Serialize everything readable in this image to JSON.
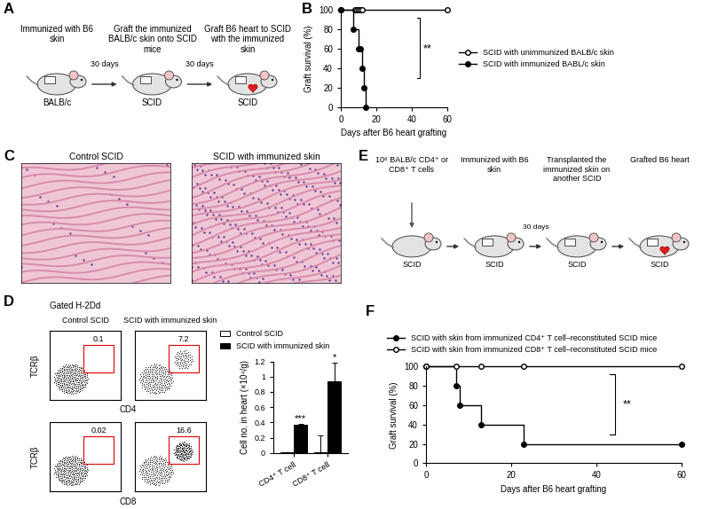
{
  "diagrams": [
    {
      "panel": "A",
      "steps": [
        {
          "mouse": "BALB/c",
          "text": "Immunized with B6 skin"
        },
        {
          "mouse": "SCID",
          "text": "Graft the immunized BALB/c skin onto SCID mice"
        },
        {
          "mouse": "SCID",
          "text": "Graft B6 heart to SCID with the immunized skin"
        }
      ],
      "arrows": [
        "30 days",
        "30 days"
      ]
    },
    {
      "panel": "E",
      "steps": [
        {
          "mouse": "SCID",
          "text": "10⁶ BALB/c CD4⁺ or CD8⁺ T cells"
        },
        {
          "mouse": "SCID",
          "text": "Immunized with B6 skin"
        },
        {
          "mouse": "SCID",
          "text": "Transplanted the immunized skin on another SCID"
        },
        {
          "mouse": "SCID",
          "text": "Grafted B6 heart"
        }
      ],
      "arrows": [
        null,
        "30 days",
        null
      ]
    }
  ],
  "images": {
    "panel": "C",
    "titles": [
      "Control SCID",
      "SCID with immunized skin"
    ]
  },
  "flow_plots": {
    "panel": "D",
    "title": "Gated H-2Dd",
    "columns": [
      "Control SCID",
      "SCID with immunized skin"
    ],
    "y_label": "TCRβ",
    "rows": [
      {
        "x_label": "CD4",
        "percents": [
          0.1,
          7.2
        ]
      },
      {
        "x_label": "CD8",
        "percents": [
          0.02,
          16.6
        ]
      }
    ]
  },
  "chart_data": [
    {
      "panel": "B",
      "type": "line",
      "line_style": "steps",
      "x_label": "Days after B6 heart grafting",
      "y_label": "Graft survival (%)",
      "xlim": [
        0,
        60
      ],
      "xticks": [
        0,
        20,
        40,
        60
      ],
      "ylim": [
        0,
        100
      ],
      "yticks": [
        0,
        20,
        40,
        60,
        80,
        100
      ],
      "legend": "center left",
      "series": [
        {
          "name": "SCID with unimmunized BALB/c skin",
          "color": "#000000",
          "marker": "open_circle",
          "x": [
            0,
            8,
            9,
            10,
            11,
            12,
            60
          ],
          "values": [
            100,
            100,
            100,
            100,
            100,
            100,
            100
          ]
        },
        {
          "name": "SCID with immunized BABL/c skin",
          "color": "#000000",
          "marker": "filled_circle",
          "x": [
            0,
            7,
            10,
            11,
            12,
            13,
            14
          ],
          "values": [
            100,
            80,
            60,
            60,
            40,
            20,
            0
          ]
        }
      ],
      "annotations": [
        "**"
      ]
    },
    {
      "panel": "D",
      "type": "bar",
      "y_label": "Cell no. in heart (×10⁴/g)",
      "categories": [
        "CD4⁺ T cell",
        "CD8⁺ T cell"
      ],
      "ylim": [
        0,
        1.2
      ],
      "yticks": [
        0,
        0.2,
        0.4,
        0.6,
        0.8,
        1,
        1.2
      ],
      "legend": "lower left",
      "series": [
        {
          "name": "Control SCID",
          "color": "#ffffff",
          "values": [
            0.01,
            0.01
          ],
          "errors": [
            0.005,
            0.22
          ]
        },
        {
          "name": "SCID with immunized skin",
          "color": "#000000",
          "values": [
            0.37,
            0.94
          ],
          "errors": [
            0.01,
            0.24
          ]
        }
      ],
      "annotations": [
        "***",
        "*"
      ]
    },
    {
      "panel": "F",
      "type": "line",
      "line_style": "steps",
      "x_label": "Days after B6 heart grafting",
      "y_label": "Graft survival (%)",
      "xlim": [
        0,
        60
      ],
      "xticks": [
        0,
        20,
        40,
        60
      ],
      "ylim": [
        0,
        100
      ],
      "yticks": [
        0,
        20,
        40,
        60,
        80,
        100
      ],
      "legend": "lower left",
      "series": [
        {
          "name": "SCID with skin from immunized CD4⁺ T cell–reconstituted SCID mice",
          "color": "#000000",
          "marker": "filled_circle",
          "x": [
            0,
            7,
            8,
            13,
            23,
            60
          ],
          "values": [
            100,
            80,
            60,
            40,
            20,
            20
          ]
        },
        {
          "name": "SCID with skin from immunized CD8⁺ T cell–reconstituted SCID mice",
          "color": "#000000",
          "marker": "open_circle",
          "x": [
            0,
            7,
            13,
            23,
            60
          ],
          "values": [
            100,
            100,
            100,
            100,
            100
          ]
        }
      ],
      "annotations": [
        "**"
      ]
    }
  ]
}
